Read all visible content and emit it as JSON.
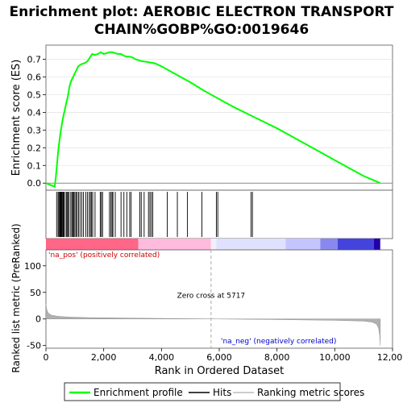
{
  "chart_data": {
    "type": "line",
    "title_line1": "Enrichment plot: AEROBIC ELECTRON TRANSPORT",
    "title_line2": "CHAIN%GOBP%GO:0019646",
    "top_panel": {
      "ylabel": "Enrichment score (ES)",
      "ylim": [
        -0.04,
        0.78
      ],
      "yticks": [
        "0.0",
        "0.1",
        "0.2",
        "0.3",
        "0.4",
        "0.5",
        "0.6",
        "0.7"
      ],
      "ytick_values": [
        0.0,
        0.1,
        0.2,
        0.3,
        0.4,
        0.5,
        0.6,
        0.7
      ],
      "series": [
        {
          "name": "Enrichment profile",
          "color": "#00ff00",
          "x": [
            0,
            300,
            340,
            380,
            420,
            460,
            500,
            540,
            580,
            620,
            660,
            700,
            760,
            820,
            880,
            940,
            1000,
            1060,
            1120,
            1200,
            1280,
            1360,
            1440,
            1520,
            1600,
            1700,
            1800,
            1900,
            2000,
            2100,
            2200,
            2300,
            2400,
            2500,
            2600,
            2700,
            2800,
            2900,
            3000,
            3100,
            3200,
            3300,
            3400,
            3500,
            3600,
            3700,
            3800,
            4000,
            4500,
            5000,
            5500,
            6000,
            6500,
            7000,
            7500,
            8000,
            8500,
            9000,
            9500,
            10000,
            10500,
            11000,
            11575
          ],
          "y": [
            0.0,
            -0.02,
            0.03,
            0.1,
            0.17,
            0.23,
            0.28,
            0.32,
            0.36,
            0.39,
            0.42,
            0.45,
            0.49,
            0.55,
            0.58,
            0.6,
            0.62,
            0.64,
            0.66,
            0.67,
            0.675,
            0.68,
            0.69,
            0.71,
            0.73,
            0.725,
            0.73,
            0.74,
            0.73,
            0.735,
            0.74,
            0.74,
            0.735,
            0.73,
            0.73,
            0.72,
            0.715,
            0.715,
            0.71,
            0.7,
            0.695,
            0.69,
            0.688,
            0.685,
            0.682,
            0.68,
            0.675,
            0.66,
            0.615,
            0.57,
            0.52,
            0.475,
            0.43,
            0.39,
            0.35,
            0.31,
            0.265,
            0.22,
            0.175,
            0.13,
            0.085,
            0.04,
            0.0
          ]
        }
      ]
    },
    "hits_panel": {
      "hit_positions": [
        370,
        420,
        450,
        480,
        500,
        520,
        540,
        560,
        590,
        610,
        640,
        700,
        730,
        760,
        800,
        860,
        900,
        930,
        960,
        1000,
        1040,
        1080,
        1130,
        1180,
        1240,
        1300,
        1380,
        1440,
        1500,
        1540,
        1580,
        1620,
        1700,
        1880,
        1920,
        1960,
        2200,
        2250,
        2290,
        2320,
        2400,
        2600,
        2700,
        2800,
        2900,
        2950,
        3250,
        3300,
        3400,
        3550,
        3600,
        3650,
        3700,
        4200,
        4550,
        4900,
        5400,
        5900,
        5950,
        7100,
        7150
      ]
    },
    "bottom_panel": {
      "ylabel": "Ranked list metric (PreRanked)",
      "xlabel": "Rank in Ordered Dataset",
      "ylim": [
        -55,
        130
      ],
      "yticks": [
        "100",
        "50",
        "0",
        "-50"
      ],
      "ytick_values": [
        100,
        50,
        0,
        -50
      ],
      "xlim": [
        0,
        12000
      ],
      "xticks": [
        "0",
        "2,000",
        "4,000",
        "6,000",
        "8,000",
        "10,000",
        "12,000"
      ],
      "xtick_values": [
        0,
        2000,
        4000,
        6000,
        8000,
        10000,
        12000
      ],
      "metric_x": [
        0,
        20,
        50,
        100,
        200,
        400,
        800,
        1500,
        3000,
        5717,
        8000,
        10000,
        11000,
        11300,
        11450,
        11520,
        11560,
        11575
      ],
      "metric_y": [
        28,
        20,
        14,
        10,
        7,
        5,
        3.5,
        2.5,
        1.5,
        0,
        -1.2,
        -2.5,
        -4,
        -6,
        -10,
        -18,
        -32,
        -50
      ],
      "zero_cross": 5717,
      "zero_cross_label": "Zero cross at 5717",
      "pos_label": "'na_pos' (positively correlated)",
      "neg_label": "'na_neg' (negatively correlated)",
      "pos_color": "#cc0000",
      "neg_color": "#0000cc"
    },
    "heatmap_bar": {
      "segments": [
        {
          "to": 3200,
          "color": "#ff6688"
        },
        {
          "to": 5717,
          "color": "#ffbbdd"
        },
        {
          "to": 5900,
          "color": "#f0f0f8"
        },
        {
          "to": 8300,
          "color": "#e0e0ff"
        },
        {
          "to": 9500,
          "color": "#c4c4ff"
        },
        {
          "to": 10100,
          "color": "#8888ee"
        },
        {
          "to": 11350,
          "color": "#4444dd"
        },
        {
          "to": 11575,
          "color": "#2200aa"
        }
      ]
    },
    "legend": {
      "placement": "bottom",
      "items": [
        {
          "label": "Enrichment profile",
          "color": "#00ff00",
          "kind": "line"
        },
        {
          "label": "Hits",
          "color": "#000000",
          "kind": "tick"
        },
        {
          "label": "Ranking metric scores",
          "color": "#cccccc",
          "kind": "tick"
        }
      ]
    }
  }
}
